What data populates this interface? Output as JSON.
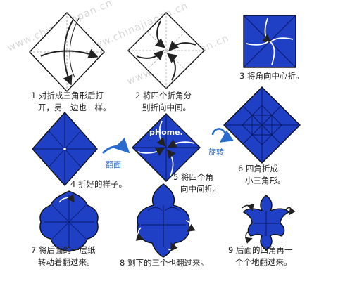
{
  "watermarks": [
    "www.chinaiaopan.cn",
    "www.chinajiaoan.cn",
    "www.chinajiaoan.cn"
  ],
  "overlay_logo": "pHome.",
  "steps": [
    {
      "num": "1",
      "line1": "对折成三角形后打",
      "line2": "开，另一边也一样。"
    },
    {
      "num": "2",
      "line1": "将四个折角分",
      "line2": "别折向中间。"
    },
    {
      "num": "3",
      "line1": "将角向中心折。",
      "line2": ""
    },
    {
      "num": "4",
      "line1": "折好的样子。",
      "line2": ""
    },
    {
      "num": "5",
      "line1": "将四个角",
      "line2": "向中间折。"
    },
    {
      "num": "6",
      "line1": "四角折成",
      "line2": "小三角形。"
    },
    {
      "num": "7",
      "line1": "将后面的一层纸",
      "line2": "转动着翻过来。"
    },
    {
      "num": "8",
      "line1": "剩下的三个也翻过来。",
      "line2": ""
    },
    {
      "num": "9",
      "line1": "后面的四角再一",
      "line2": "个个地翻过来。"
    }
  ],
  "labels": {
    "flip": "翻面",
    "rotate": "旋转"
  },
  "colors": {
    "paper_blue": "#1f3fc4",
    "edge": "#111111",
    "label_blue": "#2a6bd0"
  }
}
